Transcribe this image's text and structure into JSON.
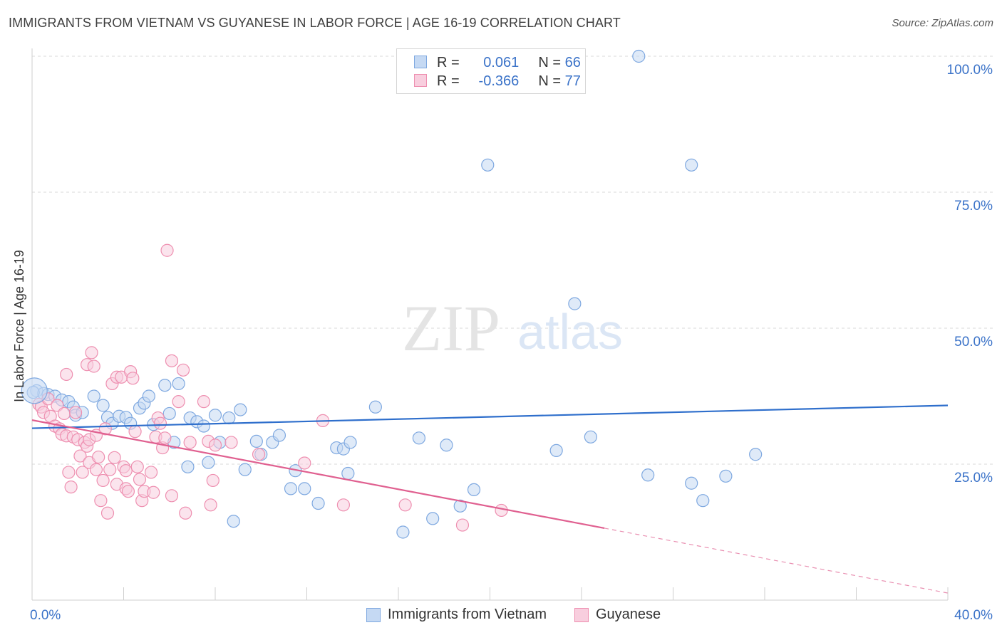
{
  "title": "IMMIGRANTS FROM VIETNAM VS GUYANESE IN LABOR FORCE | AGE 16-19 CORRELATION CHART",
  "source": "Source: ZipAtlas.com",
  "watermark": {
    "zip": "ZIP",
    "atlas": "atlas"
  },
  "colors": {
    "blue": "#7ea8e0",
    "blue_fill": "#c5d9f3",
    "blue_line": "#2f6fcc",
    "pink": "#ee8fb0",
    "pink_fill": "#f8cede",
    "pink_line": "#e06090",
    "axis_text": "#3a72c8",
    "grid": "#dadada"
  },
  "legend": {
    "rows": [
      {
        "r_label": "R =",
        "r_value": "0.061",
        "n_label": "N =",
        "n_value": "66"
      },
      {
        "r_label": "R =",
        "r_value": "-0.366",
        "n_label": "N =",
        "n_value": "77"
      }
    ]
  },
  "bottom_legend": [
    {
      "label": "Immigrants from Vietnam"
    },
    {
      "label": "Guyanese"
    }
  ],
  "chart_data": {
    "type": "scatter",
    "title": "IMMIGRANTS FROM VIETNAM VS GUYANESE IN LABOR FORCE | AGE 16-19 CORRELATION CHART",
    "xlabel": "",
    "ylabel": "In Labor Force | Age 16-19",
    "xlim": [
      0,
      40
    ],
    "ylim": [
      0,
      100
    ],
    "x_tick_labels": [
      "0.0%",
      "40.0%"
    ],
    "y_tick_labels": [
      "100.0%",
      "75.0%",
      "50.0%",
      "25.0%"
    ],
    "y_ticks": [
      100,
      75,
      50,
      25
    ],
    "series": [
      {
        "name": "Immigrants from Vietnam",
        "r": 0.061,
        "n": 66,
        "trend": {
          "x0": 0,
          "y0": 31.6,
          "x1": 40,
          "y1": 35.8,
          "dashed_from": null
        },
        "points": [
          [
            0.2,
            38.5
          ],
          [
            0.5,
            38
          ],
          [
            0.7,
            37.8
          ],
          [
            1.0,
            37.5
          ],
          [
            1.3,
            36.8
          ],
          [
            1.6,
            36.5
          ],
          [
            1.8,
            35.5
          ],
          [
            1.9,
            34
          ],
          [
            2.2,
            34.5
          ],
          [
            2.7,
            37.5
          ],
          [
            3.1,
            35.8
          ],
          [
            3.3,
            33.6
          ],
          [
            3.5,
            32.5
          ],
          [
            3.8,
            33.8
          ],
          [
            4.1,
            33.6
          ],
          [
            4.3,
            32.5
          ],
          [
            4.7,
            35.3
          ],
          [
            4.9,
            36.2
          ],
          [
            5.1,
            37.5
          ],
          [
            5.3,
            32.3
          ],
          [
            5.8,
            39.5
          ],
          [
            6.0,
            34.3
          ],
          [
            6.2,
            29
          ],
          [
            6.4,
            39.8
          ],
          [
            6.8,
            24.5
          ],
          [
            6.9,
            33.5
          ],
          [
            7.2,
            32.8
          ],
          [
            7.5,
            32
          ],
          [
            7.7,
            25.3
          ],
          [
            8.0,
            34
          ],
          [
            8.2,
            29
          ],
          [
            8.6,
            33.5
          ],
          [
            8.8,
            14.5
          ],
          [
            9.1,
            35
          ],
          [
            9.3,
            24
          ],
          [
            9.8,
            29.2
          ],
          [
            10.0,
            26.8
          ],
          [
            10.5,
            29
          ],
          [
            10.8,
            30.3
          ],
          [
            11.3,
            20.5
          ],
          [
            11.5,
            23.8
          ],
          [
            11.9,
            20.5
          ],
          [
            12.5,
            17.8
          ],
          [
            13.3,
            28
          ],
          [
            13.6,
            27.8
          ],
          [
            13.8,
            23.3
          ],
          [
            13.9,
            29
          ],
          [
            15.0,
            35.5
          ],
          [
            16.2,
            12.5
          ],
          [
            16.9,
            29.8
          ],
          [
            17.5,
            15
          ],
          [
            18.1,
            28.5
          ],
          [
            18.7,
            17.3
          ],
          [
            19.3,
            20.3
          ],
          [
            19.9,
            80
          ],
          [
            22.9,
            27.5
          ],
          [
            23.7,
            54.5
          ],
          [
            24.4,
            30
          ],
          [
            26.5,
            100
          ],
          [
            26.9,
            23
          ],
          [
            28.8,
            80
          ],
          [
            28.8,
            21.5
          ],
          [
            29.3,
            18.3
          ],
          [
            30.3,
            22.8
          ],
          [
            31.6,
            26.8
          ],
          [
            0.05,
            38.2
          ]
        ]
      },
      {
        "name": "Guyanese",
        "r": -0.366,
        "n": 77,
        "trend": {
          "x0": 0,
          "y0": 33.1,
          "x1": 40,
          "y1": 1.3,
          "dashed_from": 25.0
        },
        "points": [
          [
            0.3,
            36
          ],
          [
            0.4,
            35.5
          ],
          [
            0.5,
            34.5
          ],
          [
            0.7,
            37
          ],
          [
            0.8,
            33.8
          ],
          [
            1.0,
            32
          ],
          [
            1.1,
            35.8
          ],
          [
            1.2,
            31.5
          ],
          [
            1.3,
            30.5
          ],
          [
            1.4,
            34.3
          ],
          [
            1.5,
            30.2
          ],
          [
            1.6,
            23.5
          ],
          [
            1.7,
            20.8
          ],
          [
            1.5,
            41.5
          ],
          [
            1.8,
            30
          ],
          [
            1.9,
            34.5
          ],
          [
            2.0,
            29.5
          ],
          [
            2.1,
            26.5
          ],
          [
            2.2,
            23.5
          ],
          [
            2.3,
            29
          ],
          [
            2.4,
            28.3
          ],
          [
            2.5,
            25.3
          ],
          [
            2.4,
            43.3
          ],
          [
            2.5,
            29.5
          ],
          [
            2.6,
            45.5
          ],
          [
            2.7,
            43
          ],
          [
            2.8,
            30.3
          ],
          [
            2.8,
            24
          ],
          [
            2.9,
            26.3
          ],
          [
            3.0,
            18.3
          ],
          [
            3.1,
            22
          ],
          [
            3.2,
            31.5
          ],
          [
            3.3,
            16
          ],
          [
            3.4,
            24
          ],
          [
            3.5,
            39.8
          ],
          [
            3.6,
            26.2
          ],
          [
            3.7,
            21.3
          ],
          [
            3.7,
            41
          ],
          [
            3.9,
            41
          ],
          [
            4.0,
            24.5
          ],
          [
            4.1,
            20.5
          ],
          [
            4.1,
            23.8
          ],
          [
            4.2,
            20
          ],
          [
            4.3,
            42
          ],
          [
            4.4,
            40.8
          ],
          [
            4.5,
            31
          ],
          [
            4.6,
            24.5
          ],
          [
            4.7,
            22.2
          ],
          [
            4.8,
            18.3
          ],
          [
            4.9,
            20
          ],
          [
            5.2,
            23.5
          ],
          [
            5.3,
            19.8
          ],
          [
            5.4,
            30
          ],
          [
            5.5,
            33.5
          ],
          [
            5.6,
            32.5
          ],
          [
            5.7,
            28
          ],
          [
            5.8,
            29.8
          ],
          [
            5.9,
            64.3
          ],
          [
            6.1,
            44
          ],
          [
            6.1,
            19.2
          ],
          [
            6.4,
            36.5
          ],
          [
            6.6,
            42.3
          ],
          [
            6.7,
            16
          ],
          [
            6.9,
            29
          ],
          [
            7.5,
            36.5
          ],
          [
            7.7,
            29.2
          ],
          [
            7.8,
            17.5
          ],
          [
            7.9,
            22
          ],
          [
            8.0,
            28.5
          ],
          [
            8.7,
            29
          ],
          [
            9.9,
            26.8
          ],
          [
            11.9,
            25.2
          ],
          [
            12.7,
            33
          ],
          [
            13.6,
            17.5
          ],
          [
            16.3,
            17.5
          ],
          [
            18.8,
            13.8
          ],
          [
            20.5,
            16.5
          ]
        ]
      }
    ],
    "big_point": {
      "series": "Immigrants from Vietnam",
      "x": 0.1,
      "y": 38.5
    }
  }
}
